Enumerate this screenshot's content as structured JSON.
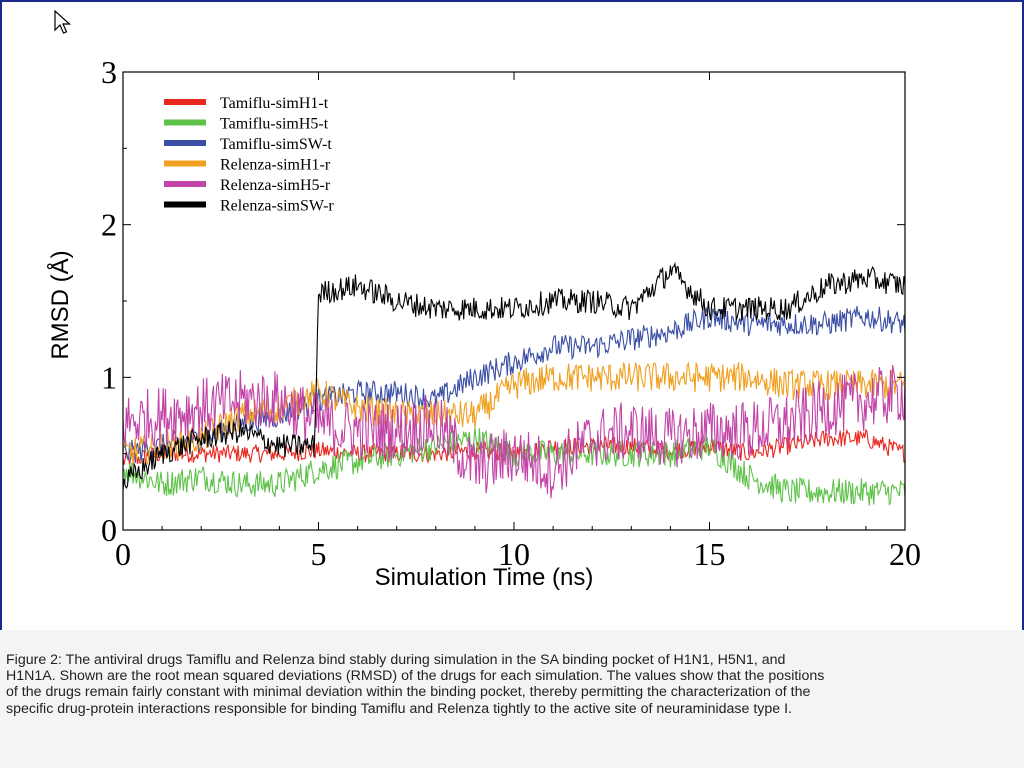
{
  "slide": {
    "caption": "Figure 2: The antiviral drugs Tamiflu and Relenza bind stably during simulation in the SA binding pocket of H1N1, H5N1, and H1N1A.  Shown are the root mean squared deviations (RMSD) of the drugs for each simulation.  The values show that the positions of the drugs remain fairly constant with minimal deviation within the binding pocket, thereby permitting the characterization of the specific drug-protein interactions responsible for binding Tamiflu and Relenza tightly to the active site of neuraminidase type I."
  },
  "icons": {
    "cursor": "mouse-pointer-icon"
  },
  "chart_data": {
    "type": "line",
    "title": "",
    "xlabel": "Simulation Time (ns)",
    "ylabel": "RMSD (Å)",
    "xlim": [
      0,
      20
    ],
    "ylim": [
      0,
      3
    ],
    "xticks": [
      "0",
      "5",
      "10",
      "15",
      "20"
    ],
    "yticks": [
      "0",
      "1",
      "2",
      "3"
    ],
    "grid": false,
    "legend_position": "top-left",
    "series": [
      {
        "name": "Tamiflu-simH1-t",
        "color": "#e8281e",
        "points": [
          [
            0,
            0.45
          ],
          [
            1,
            0.5
          ],
          [
            2,
            0.5
          ],
          [
            3,
            0.5
          ],
          [
            4,
            0.5
          ],
          [
            5,
            0.52
          ],
          [
            6,
            0.5
          ],
          [
            7,
            0.5
          ],
          [
            8,
            0.5
          ],
          [
            9,
            0.52
          ],
          [
            10,
            0.5
          ],
          [
            11,
            0.55
          ],
          [
            12,
            0.55
          ],
          [
            13,
            0.55
          ],
          [
            14,
            0.52
          ],
          [
            15,
            0.55
          ],
          [
            16,
            0.5
          ],
          [
            17,
            0.55
          ],
          [
            18,
            0.6
          ],
          [
            19,
            0.6
          ],
          [
            20,
            0.5
          ]
        ]
      },
      {
        "name": "Tamiflu-simH5-t",
        "color": "#5ec24a",
        "points": [
          [
            0,
            0.4
          ],
          [
            1,
            0.3
          ],
          [
            2,
            0.35
          ],
          [
            3,
            0.3
          ],
          [
            4,
            0.3
          ],
          [
            5,
            0.4
          ],
          [
            6,
            0.45
          ],
          [
            7,
            0.5
          ],
          [
            8,
            0.55
          ],
          [
            9,
            0.6
          ],
          [
            10,
            0.5
          ],
          [
            11,
            0.5
          ],
          [
            12,
            0.5
          ],
          [
            13,
            0.5
          ],
          [
            14,
            0.5
          ],
          [
            15,
            0.55
          ],
          [
            16,
            0.35
          ],
          [
            17,
            0.25
          ],
          [
            18,
            0.25
          ],
          [
            19,
            0.25
          ],
          [
            20,
            0.25
          ]
        ]
      },
      {
        "name": "Tamiflu-simSW-t",
        "color": "#3b4fa6",
        "points": [
          [
            0,
            0.5
          ],
          [
            1,
            0.55
          ],
          [
            2,
            0.6
          ],
          [
            3,
            0.7
          ],
          [
            4,
            0.75
          ],
          [
            5,
            0.85
          ],
          [
            6,
            0.9
          ],
          [
            7,
            0.9
          ],
          [
            8,
            0.85
          ],
          [
            9,
            1.0
          ],
          [
            10,
            1.1
          ],
          [
            11,
            1.2
          ],
          [
            12,
            1.2
          ],
          [
            13,
            1.25
          ],
          [
            14,
            1.3
          ],
          [
            15,
            1.4
          ],
          [
            16,
            1.35
          ],
          [
            17,
            1.35
          ],
          [
            18,
            1.35
          ],
          [
            19,
            1.4
          ],
          [
            20,
            1.35
          ]
        ]
      },
      {
        "name": "Relenza-simH1-r",
        "color": "#f0a020",
        "points": [
          [
            0,
            0.5
          ],
          [
            1,
            0.55
          ],
          [
            2,
            0.6
          ],
          [
            3,
            0.75
          ],
          [
            4,
            0.8
          ],
          [
            5,
            0.9
          ],
          [
            6,
            0.8
          ],
          [
            7,
            0.75
          ],
          [
            8,
            0.75
          ],
          [
            9,
            0.75
          ],
          [
            10,
            0.95
          ],
          [
            11,
            1.0
          ],
          [
            12,
            1.0
          ],
          [
            13,
            1.0
          ],
          [
            14,
            1.0
          ],
          [
            15,
            1.0
          ],
          [
            16,
            1.0
          ],
          [
            17,
            0.95
          ],
          [
            18,
            0.95
          ],
          [
            19,
            0.95
          ],
          [
            20,
            0.95
          ]
        ]
      },
      {
        "name": "Relenza-simH5-r",
        "color": "#c244a8",
        "points": [
          [
            0,
            0.7
          ],
          [
            1,
            0.75
          ],
          [
            2,
            0.8
          ],
          [
            3,
            0.85
          ],
          [
            4,
            0.85
          ],
          [
            5,
            0.7
          ],
          [
            6,
            0.65
          ],
          [
            7,
            0.65
          ],
          [
            8,
            0.7
          ],
          [
            9,
            0.4
          ],
          [
            10,
            0.5
          ],
          [
            11,
            0.4
          ],
          [
            12,
            0.6
          ],
          [
            13,
            0.65
          ],
          [
            14,
            0.6
          ],
          [
            15,
            0.65
          ],
          [
            16,
            0.65
          ],
          [
            17,
            0.7
          ],
          [
            18,
            0.8
          ],
          [
            19,
            0.85
          ],
          [
            20,
            0.9
          ]
        ]
      },
      {
        "name": "Relenza-simSW-r",
        "color": "#000000",
        "points": [
          [
            0,
            0.3
          ],
          [
            1,
            0.5
          ],
          [
            2,
            0.6
          ],
          [
            3,
            0.65
          ],
          [
            4,
            0.55
          ],
          [
            4.9,
            0.55
          ],
          [
            5,
            1.55
          ],
          [
            6,
            1.6
          ],
          [
            7,
            1.5
          ],
          [
            8,
            1.45
          ],
          [
            9,
            1.45
          ],
          [
            10,
            1.45
          ],
          [
            11,
            1.5
          ],
          [
            12,
            1.5
          ],
          [
            13,
            1.45
          ],
          [
            14,
            1.7
          ],
          [
            15,
            1.45
          ],
          [
            16,
            1.45
          ],
          [
            17,
            1.45
          ],
          [
            18,
            1.6
          ],
          [
            19,
            1.65
          ],
          [
            20,
            1.6
          ]
        ]
      }
    ]
  }
}
